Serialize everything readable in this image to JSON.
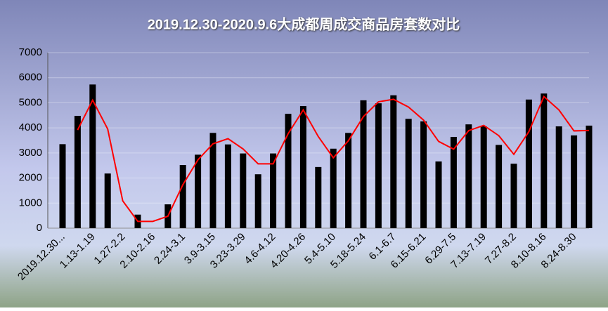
{
  "chart_data": {
    "type": "bar_line",
    "title": "2019.12.30-2020.9.6大成都周成交商品房套数对比",
    "categories": [
      "2019.12.30...",
      null,
      "1.13-1.19",
      null,
      "1.27-2.2",
      null,
      "2.10-2.16",
      null,
      "2.24-3.1",
      null,
      "3.9-3.15",
      null,
      "3.23-3.29",
      null,
      "4.6-4.12",
      null,
      "4.20-4.26",
      null,
      "5.4-5.10",
      null,
      "5.18-5.24",
      null,
      "6.1-6.7",
      null,
      "6.15-6.21",
      null,
      "6.29-7.5",
      null,
      "7.13-7.19",
      null,
      "7.27-8.2",
      null,
      "8.10-8.16",
      null,
      "8.24-8.30",
      null
    ],
    "series": [
      {
        "type": "bar",
        "color": "#000000",
        "values": [
          3350,
          4480,
          5730,
          2180,
          0,
          540,
          0,
          950,
          2520,
          2930,
          3800,
          3340,
          2980,
          2150,
          2980,
          4560,
          4870,
          2440,
          3170,
          3800,
          5100,
          4980,
          5300,
          4360,
          4260,
          2660,
          3640,
          4140,
          4060,
          3320,
          2570,
          5130,
          5370,
          4060,
          3700,
          4090
        ]
      },
      {
        "type": "line",
        "color": "#ff0000",
        "values": [
          null,
          3915,
          5105,
          3955,
          1090,
          270,
          270,
          475,
          1735,
          2725,
          3365,
          3570,
          3160,
          2565,
          2565,
          3770,
          4715,
          3655,
          2805,
          3485,
          4450,
          5040,
          5140,
          4830,
          4310,
          3460,
          3150,
          3890,
          4100,
          3690,
          2945,
          3850,
          5250,
          4715,
          3880,
          3895
        ]
      }
    ],
    "ylim": [
      0,
      7000
    ],
    "yticks": [
      0,
      1000,
      2000,
      3000,
      4000,
      5000,
      6000,
      7000
    ],
    "grid": true
  }
}
